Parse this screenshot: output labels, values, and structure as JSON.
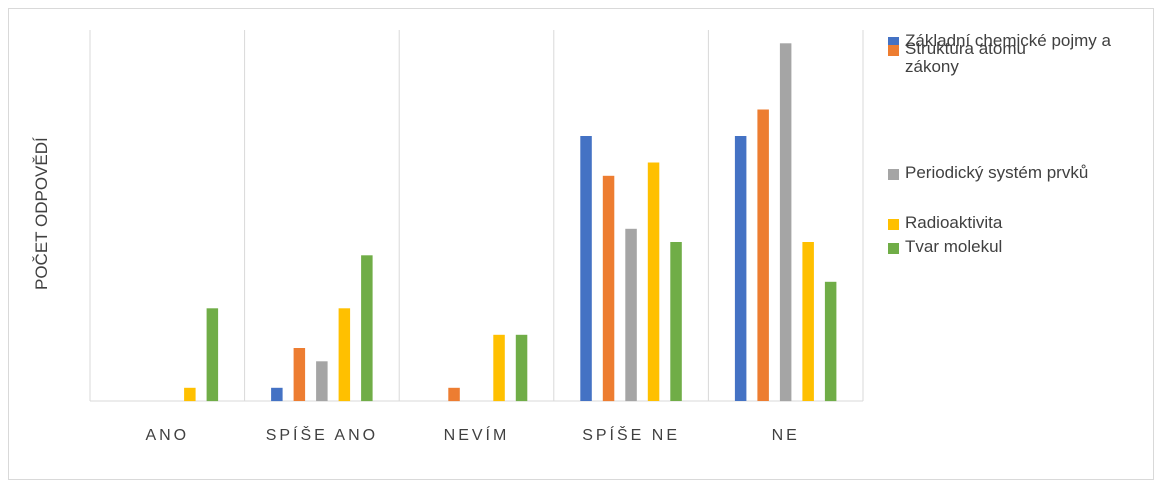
{
  "chart_data": {
    "type": "bar",
    "categories": [
      "ANO",
      "SPÍŠE ANO",
      "NEVÍM",
      "SPÍŠE NE",
      "NE"
    ],
    "ylabel": "POČET ODPOVĚDÍ",
    "xlabel": "",
    "ylim": [
      0,
      28
    ],
    "grid": "vertical-separators",
    "legend_position": "right",
    "series": [
      {
        "name": "Základní chemické pojmy a zákony",
        "color": "#4472c4",
        "values": [
          0,
          1,
          0,
          20,
          20
        ]
      },
      {
        "name": "Struktura atomu",
        "color": "#ed7d31",
        "values": [
          0,
          4,
          1,
          17,
          22
        ]
      },
      {
        "name": "Periodický systém prvků",
        "color": "#a5a5a5",
        "values": [
          0,
          3,
          0,
          13,
          27
        ]
      },
      {
        "name": "Radioaktivita",
        "color": "#ffc000",
        "values": [
          1,
          7,
          5,
          18,
          12
        ]
      },
      {
        "name": "Tvar molekul",
        "color": "#70ad47",
        "values": [
          7,
          11,
          5,
          12,
          9
        ]
      }
    ]
  }
}
